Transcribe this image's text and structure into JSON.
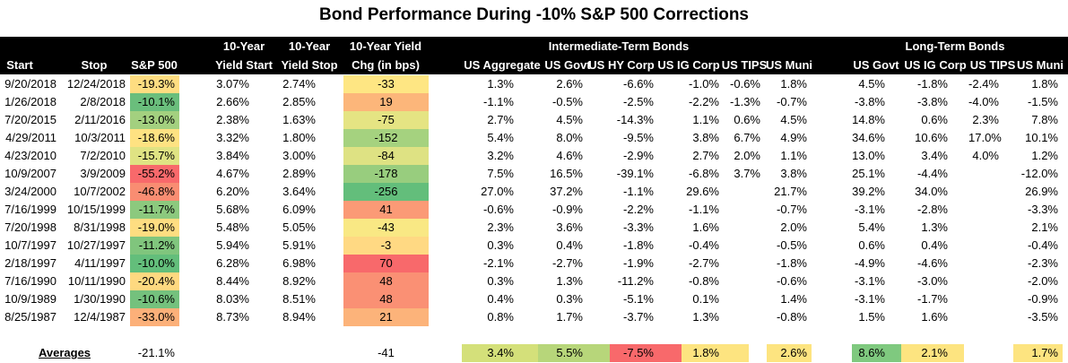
{
  "title": "Bond Performance During -10% S&P 500 Corrections",
  "header_top": [
    "10-Year",
    "10-Year",
    "10-Year Yield"
  ],
  "groups": [
    "Intermediate-Term Bonds",
    "Long-Term Bonds"
  ],
  "columns": [
    "Start",
    "Stop",
    "S&P 500",
    "Yield Start",
    "Yield Stop",
    "Chg (in bps)",
    "US Aggregate",
    "US Govt",
    "US HY Corp",
    "US IG Corp",
    "US TIPS",
    "US Muni",
    "US Govt",
    "US IG Corp",
    "US TIPS",
    "US Muni"
  ],
  "rows": [
    [
      "9/20/2018",
      "12/24/2018",
      "-19.3%",
      "3.07%",
      "2.74%",
      "-33",
      "1.3%",
      "2.6%",
      "-6.6%",
      "-1.0%",
      "-0.6%",
      "1.8%",
      "4.5%",
      "-1.8%",
      "-2.4%",
      "1.8%"
    ],
    [
      "1/26/2018",
      "2/8/2018",
      "-10.1%",
      "2.66%",
      "2.85%",
      "19",
      "-1.1%",
      "-0.5%",
      "-2.5%",
      "-2.2%",
      "-1.3%",
      "-0.7%",
      "-3.8%",
      "-3.8%",
      "-4.0%",
      "-1.5%"
    ],
    [
      "7/20/2015",
      "2/11/2016",
      "-13.0%",
      "2.38%",
      "1.63%",
      "-75",
      "2.7%",
      "4.5%",
      "-14.3%",
      "1.1%",
      "0.6%",
      "4.5%",
      "14.8%",
      "0.6%",
      "2.3%",
      "7.8%"
    ],
    [
      "4/29/2011",
      "10/3/2011",
      "-18.6%",
      "3.32%",
      "1.80%",
      "-152",
      "5.4%",
      "8.0%",
      "-9.5%",
      "3.8%",
      "6.7%",
      "4.9%",
      "34.6%",
      "10.6%",
      "17.0%",
      "10.1%"
    ],
    [
      "4/23/2010",
      "7/2/2010",
      "-15.7%",
      "3.84%",
      "3.00%",
      "-84",
      "3.2%",
      "4.6%",
      "-2.9%",
      "2.7%",
      "2.0%",
      "1.1%",
      "13.0%",
      "3.4%",
      "4.0%",
      "1.2%"
    ],
    [
      "10/9/2007",
      "3/9/2009",
      "-55.2%",
      "4.67%",
      "2.89%",
      "-178",
      "7.5%",
      "16.5%",
      "-39.1%",
      "-6.8%",
      "3.7%",
      "3.8%",
      "25.1%",
      "-4.4%",
      null,
      "-12.0%"
    ],
    [
      "3/24/2000",
      "10/7/2002",
      "-46.8%",
      "6.20%",
      "3.64%",
      "-256",
      "27.0%",
      "37.2%",
      "-1.1%",
      "29.6%",
      null,
      "21.7%",
      "39.2%",
      "34.0%",
      null,
      "26.9%"
    ],
    [
      "7/16/1999",
      "10/15/1999",
      "-11.7%",
      "5.68%",
      "6.09%",
      "41",
      "-0.6%",
      "-0.9%",
      "-2.2%",
      "-1.1%",
      null,
      "-0.7%",
      "-3.1%",
      "-2.8%",
      null,
      "-3.3%"
    ],
    [
      "7/20/1998",
      "8/31/1998",
      "-19.0%",
      "5.48%",
      "5.05%",
      "-43",
      "2.3%",
      "3.6%",
      "-3.3%",
      "1.6%",
      null,
      "2.0%",
      "5.4%",
      "1.3%",
      null,
      "2.1%"
    ],
    [
      "10/7/1997",
      "10/27/1997",
      "-11.2%",
      "5.94%",
      "5.91%",
      "-3",
      "0.3%",
      "0.4%",
      "-1.8%",
      "-0.4%",
      null,
      "-0.5%",
      "0.6%",
      "0.4%",
      null,
      "-0.4%"
    ],
    [
      "2/18/1997",
      "4/11/1997",
      "-10.0%",
      "6.28%",
      "6.98%",
      "70",
      "-2.1%",
      "-2.7%",
      "-1.9%",
      "-2.7%",
      null,
      "-1.8%",
      "-4.9%",
      "-4.6%",
      null,
      "-2.3%"
    ],
    [
      "7/16/1990",
      "10/11/1990",
      "-20.4%",
      "8.44%",
      "8.92%",
      "48",
      "0.3%",
      "1.3%",
      "-11.2%",
      "-0.8%",
      null,
      "-0.6%",
      "-3.1%",
      "-3.0%",
      null,
      "-2.0%"
    ],
    [
      "10/9/1989",
      "1/30/1990",
      "-10.6%",
      "8.03%",
      "8.51%",
      "48",
      "0.4%",
      "0.3%",
      "-5.1%",
      "0.1%",
      null,
      "1.4%",
      "-3.1%",
      "-1.7%",
      null,
      "-0.9%"
    ],
    [
      "8/25/1987",
      "12/4/1987",
      "-33.0%",
      "8.73%",
      "8.94%",
      "21",
      "0.8%",
      "1.7%",
      "-3.7%",
      "1.3%",
      null,
      "-0.8%",
      "1.5%",
      "1.6%",
      null,
      "-3.5%"
    ]
  ],
  "averages": [
    "Averages",
    null,
    "-21.1%",
    null,
    null,
    "-41",
    "3.4%",
    "5.5%",
    "-7.5%",
    "1.8%",
    null,
    "2.6%",
    "8.6%",
    "2.1%",
    null,
    "1.7%"
  ],
  "row_colors": {
    "2": [
      "#fedd81",
      "#6abe7c",
      "#a3d07f",
      "#fee282",
      "#dfe383",
      "#f8696b",
      "#f98d72",
      "#8cc97e",
      "#fedd81",
      "#80c57d",
      "#63be7b",
      "#fed980",
      "#74c17d",
      "#fcb079"
    ],
    "5": [
      "#fee683",
      "#fcb67a",
      "#e5e483",
      "#a5d27f",
      "#dee283",
      "#98cd7e",
      "#63be7b",
      "#fb9a76",
      "#f9e884",
      "#ffd983",
      "#f8696b",
      "#fa9074",
      "#fa9074",
      "#fcb37a"
    ]
  },
  "averages_colors": [
    null,
    null,
    null,
    null,
    null,
    null,
    "#d4e07a",
    "#b7d67a",
    "#f8696b",
    "#fde480",
    null,
    "#fde480",
    "#7fc97f",
    "#fde480",
    null,
    "#fde480"
  ]
}
